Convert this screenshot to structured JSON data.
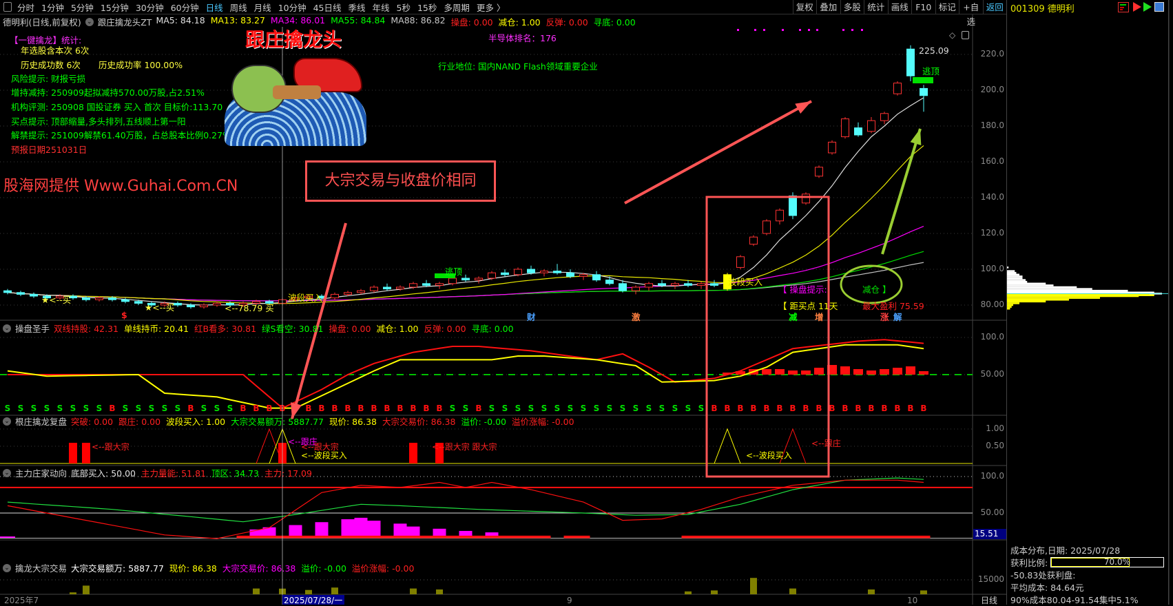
{
  "toolbar": {
    "periods": [
      "分时",
      "1分钟",
      "5分钟",
      "15分钟",
      "30分钟",
      "60分钟",
      "日线",
      "周线",
      "月线",
      "10分钟",
      "45日线",
      "季线",
      "年线",
      "5秒",
      "15秒",
      "多周期",
      "更多 〉"
    ],
    "active": "日线",
    "right_buttons": [
      "复权",
      "叠加",
      "多股",
      "统计",
      "画线",
      "F10",
      "标记",
      "+自选",
      "返回"
    ]
  },
  "header": {
    "stock": "德明利(日线,前复权)",
    "indicator": "跟庄擒龙头ZT",
    "items": [
      {
        "text": "MA5: 84.18",
        "color": "#e0e0e0"
      },
      {
        "text": "MA13: 83.27",
        "color": "#ffff00"
      },
      {
        "text": "MA34: 86.01",
        "color": "#ff00ff"
      },
      {
        "text": "MA55: 84.84",
        "color": "#00ff00"
      },
      {
        "text": "MA88: 86.82",
        "color": "#c8c8c8"
      },
      {
        "text": "操盘: 0.00",
        "color": "#ff2020"
      },
      {
        "text": "减仓: 1.00",
        "color": "#ffff00"
      },
      {
        "text": "反弹: 0.00",
        "color": "#ff2020"
      },
      {
        "text": "寻底: 0.00",
        "color": "#00ff00"
      }
    ]
  },
  "overlay": {
    "stats_title": "【一键擒龙】统计:",
    "stats_year": "年选股含本次 6次",
    "stats_hist": "历史成功数 6次",
    "stats_rate": "历史成功率 100.00%",
    "risk": "风险提示: 财报亏损",
    "holding": "增持减持: 250909起拟减持570.00万股,占2.51%",
    "rating": "机构评测: 250908 国投证券 买入 首次 目标价:113.70",
    "buy_tip": "买点提示: 顶部缩量,多头排列,五线顺上第一阳",
    "unlock": "解禁提示: 251009解禁61.40万股，占总股本比例0.27%",
    "report_date": "预报日期251031日",
    "provider": "股海网提供 Www.Guhai.Com.CN",
    "logo_text": "跟庄擒龙头",
    "annotation_box": "大宗交易与收盘价相同",
    "rank": "半导体排名：176",
    "industry": "行业地位: 国内NAND Flash领域重要企业",
    "high_label": "225.09",
    "escape_top": "逃顶",
    "wave_buy": "波段买入",
    "op_tip_open": "【 操盘提示:",
    "op_tip_value": "减仓 】",
    "buy_days": "【 距买点  11天",
    "max_profit": "最大盈利 75.59",
    "buy_marks": [
      "★<--买",
      "★<--买",
      "<--78.79 买"
    ],
    "event_marks": [
      {
        "text": "$",
        "color": "#ff2020",
        "i": 9
      },
      {
        "text": "财",
        "color": "#4aa0ff",
        "i": 40
      },
      {
        "text": "激",
        "color": "#ff8040",
        "i": 48
      },
      {
        "text": "减",
        "color": "#00ff00",
        "i": 60
      },
      {
        "text": "增",
        "color": "#ff8040",
        "i": 62
      },
      {
        "text": "涨",
        "color": "#ff4040",
        "i": 67
      },
      {
        "text": "解",
        "color": "#4aa0ff",
        "i": 68
      }
    ]
  },
  "price_axis": {
    "ticks": [
      "220.0",
      "200.0",
      "180.0",
      "160.0",
      "140.0",
      "120.0",
      "100.0",
      "80.00"
    ],
    "min": 80,
    "max": 220
  },
  "candles": [
    [
      88,
      89,
      86,
      87
    ],
    [
      87,
      88,
      85,
      86
    ],
    [
      86,
      87,
      84,
      85
    ],
    [
      85,
      86,
      83,
      84
    ],
    [
      84,
      86,
      83,
      85
    ],
    [
      85,
      86,
      83,
      84
    ],
    [
      84,
      85,
      82,
      83
    ],
    [
      83,
      85,
      82,
      84
    ],
    [
      84,
      85,
      82,
      83
    ],
    [
      83,
      84,
      81,
      82
    ],
    [
      82,
      83,
      80,
      81
    ],
    [
      81,
      82,
      79,
      80
    ],
    [
      80,
      82,
      79,
      81
    ],
    [
      81,
      82,
      79,
      80
    ],
    [
      80,
      81,
      78,
      79
    ],
    [
      79,
      81,
      78,
      80
    ],
    [
      80,
      82,
      79,
      81
    ],
    [
      81,
      82,
      79,
      80
    ],
    [
      80,
      82,
      79,
      81
    ],
    [
      81,
      83,
      80,
      82
    ],
    [
      82,
      83,
      80,
      81
    ],
    [
      81,
      84,
      80,
      83
    ],
    [
      83,
      85,
      82,
      84
    ],
    [
      84,
      86,
      83,
      85
    ],
    [
      85,
      86,
      83,
      84
    ],
    [
      84,
      87,
      83,
      86
    ],
    [
      86,
      88,
      85,
      87
    ],
    [
      87,
      89,
      86,
      88
    ],
    [
      88,
      91,
      87,
      90
    ],
    [
      90,
      92,
      88,
      89
    ],
    [
      89,
      91,
      88,
      90
    ],
    [
      90,
      93,
      89,
      92
    ],
    [
      92,
      94,
      90,
      91
    ],
    [
      91,
      93,
      89,
      92
    ],
    [
      92,
      96,
      91,
      95
    ],
    [
      95,
      97,
      93,
      94
    ],
    [
      94,
      96,
      92,
      95
    ],
    [
      95,
      99,
      94,
      98
    ],
    [
      98,
      100,
      96,
      97
    ],
    [
      97,
      101,
      96,
      100
    ],
    [
      100,
      102,
      97,
      98
    ],
    [
      98,
      100,
      96,
      99
    ],
    [
      99,
      103,
      97,
      98
    ],
    [
      98,
      100,
      95,
      96
    ],
    [
      96,
      98,
      94,
      97
    ],
    [
      97,
      99,
      93,
      94
    ],
    [
      94,
      96,
      91,
      92
    ],
    [
      92,
      94,
      87,
      88
    ],
    [
      88,
      91,
      86,
      90
    ],
    [
      90,
      93,
      88,
      92
    ],
    [
      92,
      94,
      90,
      91
    ],
    [
      91,
      93,
      89,
      92
    ],
    [
      92,
      94,
      90,
      91
    ],
    [
      91,
      93,
      89,
      92
    ],
    [
      92,
      94,
      90,
      91
    ],
    [
      89,
      98,
      88,
      97
    ],
    [
      101,
      108,
      100,
      107
    ],
    [
      114,
      119,
      113,
      118
    ],
    [
      120,
      128,
      119,
      127
    ],
    [
      127,
      134,
      125,
      133
    ],
    [
      141,
      143,
      128,
      130
    ],
    [
      137,
      143,
      136,
      142
    ],
    [
      152,
      158,
      151,
      157
    ],
    [
      165,
      172,
      164,
      171
    ],
    [
      174,
      185,
      173,
      184
    ],
    [
      179,
      182,
      174,
      175
    ],
    [
      177,
      185,
      176,
      183
    ],
    [
      183,
      188,
      181,
      187
    ],
    [
      198,
      205,
      197,
      204
    ],
    [
      223,
      225.09,
      205,
      208
    ],
    [
      201,
      203,
      188,
      197
    ]
  ],
  "candle_colors": {
    "up": "#ff3232",
    "down": "#54fcfc",
    "signal": "#ffff00"
  },
  "ma_colors": {
    "ma5": "#e0e0e0",
    "ma13": "#e8e800",
    "ma34": "#ff00ff",
    "ma55": "#00e000",
    "ma88": "#c0c0c0"
  },
  "panel1": {
    "title": "操盘圣手",
    "items": [
      {
        "text": "双线持股: 42.31",
        "color": "#ff2020"
      },
      {
        "text": "单线持币: 20.41",
        "color": "#ffff00"
      },
      {
        "text": "红B看多: 30.81",
        "color": "#ff2020"
      },
      {
        "text": "绿S看空: 30.81",
        "color": "#00ff00"
      },
      {
        "text": "操盘: 0.00",
        "color": "#ff2020"
      },
      {
        "text": "减仓: 1.00",
        "color": "#ffff00"
      },
      {
        "text": "反弹: 0.00",
        "color": "#ff2020"
      },
      {
        "text": "寻底: 0.00",
        "color": "#00ff00"
      }
    ],
    "ticks": [
      "100.0",
      "50.00"
    ],
    "red_line": [
      [
        0,
        50
      ],
      [
        18,
        50
      ],
      [
        21,
        5
      ],
      [
        24,
        30
      ],
      [
        26,
        50
      ],
      [
        28,
        65
      ],
      [
        31,
        80
      ],
      [
        34,
        88
      ],
      [
        36,
        88
      ],
      [
        40,
        82
      ],
      [
        45,
        70
      ],
      [
        47,
        78
      ],
      [
        49,
        60
      ],
      [
        51,
        40
      ],
      [
        54,
        45
      ],
      [
        56,
        55
      ],
      [
        60,
        85
      ],
      [
        65,
        95
      ],
      [
        67,
        97
      ],
      [
        70,
        92
      ]
    ],
    "yellow_line": [
      [
        0,
        55
      ],
      [
        3,
        48
      ],
      [
        10,
        50
      ],
      [
        12,
        25
      ],
      [
        16,
        20
      ],
      [
        20,
        5
      ],
      [
        22,
        5
      ],
      [
        25,
        30
      ],
      [
        28,
        55
      ],
      [
        30,
        70
      ],
      [
        37,
        70
      ],
      [
        39,
        75
      ],
      [
        41,
        75
      ],
      [
        45,
        70
      ],
      [
        48,
        62
      ],
      [
        50,
        40
      ],
      [
        54,
        42
      ],
      [
        56,
        48
      ],
      [
        58,
        60
      ],
      [
        60,
        80
      ],
      [
        64,
        90
      ],
      [
        68,
        90
      ],
      [
        70,
        85
      ]
    ],
    "signals": "SSSSSSSSBSSSSSBSSSBBBBBBBBBBBBBBBBSSBSSSSSSSSSSSSSSSSSBBBBBBBBBBBBBBBBB",
    "bars": [
      0,
      0,
      0,
      0,
      0,
      0,
      0,
      0,
      0,
      0,
      0,
      0,
      0,
      0,
      0,
      0,
      0,
      0,
      0,
      0,
      0,
      0,
      0,
      0,
      0,
      0,
      0,
      0,
      0,
      0,
      0,
      0,
      0,
      0,
      0,
      0,
      0,
      0,
      0,
      0,
      0,
      0,
      0,
      0,
      0,
      0,
      0,
      0,
      0,
      0,
      0,
      0,
      0,
      0,
      0,
      3,
      5,
      8,
      8,
      8,
      6,
      6,
      10,
      14,
      12,
      8,
      6,
      8,
      10,
      12,
      5
    ]
  },
  "panel2": {
    "title": "根庄擒龙复盘",
    "items": [
      {
        "text": "突破: 0.00",
        "color": "#ff2020"
      },
      {
        "text": "跟庄: 0.00",
        "color": "#ff2020"
      },
      {
        "text": "波段买入: 1.00",
        "color": "#ffff00"
      },
      {
        "text": "大宗交易额万: 5887.77",
        "color": "#00ff00"
      },
      {
        "text": "现价: 86.38",
        "color": "#ffff00"
      },
      {
        "text": "大宗交易价: 86.38",
        "color": "#ff2020"
      },
      {
        "text": "溢价: -0.00",
        "color": "#00ff00"
      },
      {
        "text": "溢价涨幅: -0.00",
        "color": "#ff2020"
      }
    ],
    "ticks": [
      "1.00",
      "0.50"
    ],
    "block_bars": [
      5,
      6,
      21,
      31,
      33
    ],
    "red_peaks": [
      20,
      60
    ],
    "yellow_peaks": [
      21,
      55
    ],
    "labels": [
      {
        "text": "<--跟大宗",
        "color": "#ff2020",
        "i": 6,
        "v": 0.5
      },
      {
        "text": "<--跟庄",
        "color": "#ff00ff",
        "i": 21,
        "v": 0.65
      },
      {
        "text": "<--跟大宗",
        "color": "#ff2020",
        "i": 22,
        "v": 0.5
      },
      {
        "text": "<--波段买入",
        "color": "#ffff00",
        "i": 22,
        "v": 0.25
      },
      {
        "text": "<--跟大宗 跟大宗",
        "color": "#ff2020",
        "i": 32,
        "v": 0.5
      },
      {
        "text": "<--波段买入",
        "color": "#ffff00",
        "i": 56,
        "v": 0.25
      },
      {
        "text": "<--跟庄",
        "color": "#ff2020",
        "i": 61,
        "v": 0.6
      }
    ]
  },
  "panel3": {
    "title": "主力庄家动向",
    "items": [
      {
        "text": "底部买入: 50.00",
        "color": "#e0e0e0"
      },
      {
        "text": "主力量能: 51.81",
        "color": "#ff2020"
      },
      {
        "text": "顶区: 34.73",
        "color": "#00ff00"
      },
      {
        "text": "主力: 17.09",
        "color": "#ff2020"
      }
    ],
    "ticks": [
      "100.0",
      "50.00"
    ],
    "value_box": "15.51",
    "green_line": [
      [
        0,
        65
      ],
      [
        8,
        55
      ],
      [
        14,
        45
      ],
      [
        18,
        38
      ],
      [
        22,
        48
      ],
      [
        27,
        62
      ],
      [
        30,
        60
      ],
      [
        36,
        55
      ],
      [
        44,
        50
      ],
      [
        48,
        47
      ],
      [
        52,
        48
      ],
      [
        56,
        62
      ],
      [
        60,
        82
      ],
      [
        64,
        95
      ],
      [
        68,
        98
      ],
      [
        70,
        96
      ]
    ],
    "red_line": [
      [
        0,
        60
      ],
      [
        6,
        40
      ],
      [
        9,
        30
      ],
      [
        12,
        20
      ],
      [
        16,
        15
      ],
      [
        20,
        30
      ],
      [
        24,
        78
      ],
      [
        27,
        88
      ],
      [
        30,
        85
      ],
      [
        33,
        92
      ],
      [
        35,
        85
      ],
      [
        37,
        92
      ],
      [
        40,
        82
      ],
      [
        44,
        65
      ],
      [
        47,
        40
      ],
      [
        50,
        42
      ],
      [
        53,
        55
      ],
      [
        56,
        72
      ],
      [
        60,
        88
      ],
      [
        64,
        95
      ],
      [
        68,
        95
      ],
      [
        70,
        92
      ]
    ],
    "magenta_area": [
      [
        19,
        12
      ],
      [
        20,
        15
      ],
      [
        22,
        18
      ],
      [
        24,
        22
      ],
      [
        26,
        26
      ],
      [
        27,
        28
      ],
      [
        28,
        24
      ],
      [
        30,
        20
      ],
      [
        31,
        16
      ],
      [
        33,
        13
      ],
      [
        35,
        10
      ],
      [
        37,
        8
      ]
    ],
    "red_bars": [
      18,
      19,
      20,
      21,
      22,
      23,
      24,
      25,
      26,
      27,
      28,
      29,
      30,
      31,
      32,
      33,
      34,
      35,
      36,
      37,
      38,
      39,
      40,
      41,
      43,
      44,
      52,
      53,
      54,
      55,
      56,
      57,
      58,
      59,
      60,
      61,
      62,
      63,
      64,
      65,
      66,
      67,
      68,
      69,
      70
    ]
  },
  "panel4": {
    "title": "擒龙大宗交易",
    "items": [
      {
        "text": "大宗交易额万: 5887.77",
        "color": "#ffffff"
      },
      {
        "text": "现价: 86.38",
        "color": "#ffff00"
      },
      {
        "text": "大宗交易价: 86.38",
        "color": "#ff00ff"
      },
      {
        "text": "溢价: -0.00",
        "color": "#00ff00"
      },
      {
        "text": "溢价涨幅: -0.00",
        "color": "#ff2020"
      }
    ],
    "ticks": [
      "15000"
    ],
    "bars": [
      [
        5,
        2000
      ],
      [
        6,
        9000
      ],
      [
        19,
        6000
      ],
      [
        21,
        5888
      ],
      [
        23,
        4500
      ],
      [
        25,
        7000
      ],
      [
        31,
        6000
      ],
      [
        33,
        5000
      ],
      [
        52,
        3000
      ],
      [
        54,
        4000
      ],
      [
        57,
        17000
      ],
      [
        60,
        6000
      ],
      [
        66,
        5000
      ],
      [
        70,
        4000
      ]
    ]
  },
  "date_axis": {
    "labels": [
      {
        "text": "2025年7",
        "i": 0
      },
      {
        "text": "9",
        "i": 43
      },
      {
        "text": "10",
        "i": 69
      }
    ],
    "cursor": "2025/07/28/一",
    "period": "日线"
  },
  "right_panel": {
    "code": "001309 德明利",
    "cost_title": "成本分布,日期: 2025/07/28",
    "profit_label": "获利比例:",
    "profit_ratio": 70.0,
    "profit_text": "70.0%",
    "profit_at": "-50.83处获利盘:",
    "avg_cost": "平均成本:  84.64元",
    "concentration": "90%成本80.04-91.54集中5.1%",
    "chip_profile": [
      [
        101,
        0.01
      ],
      [
        99,
        0.05
      ],
      [
        98,
        0.06
      ],
      [
        97,
        0.08
      ],
      [
        96,
        0.1
      ],
      [
        95,
        0.1
      ],
      [
        94,
        0.12
      ],
      [
        93,
        0.13
      ],
      [
        92,
        0.25
      ],
      [
        91,
        0.3
      ],
      [
        90,
        0.45
      ],
      [
        89,
        0.55
      ],
      [
        88,
        0.78
      ],
      [
        87,
        0.95
      ],
      [
        86.4,
        1.0
      ],
      [
        86,
        0.92
      ],
      [
        85.5,
        0.95
      ],
      [
        85,
        0.85
      ],
      [
        84,
        0.6
      ],
      [
        83,
        0.4
      ],
      [
        82,
        0.25
      ],
      [
        81,
        0.08
      ],
      [
        80,
        0.04
      ],
      [
        79,
        0.03
      ],
      [
        78,
        0.02
      ]
    ]
  }
}
